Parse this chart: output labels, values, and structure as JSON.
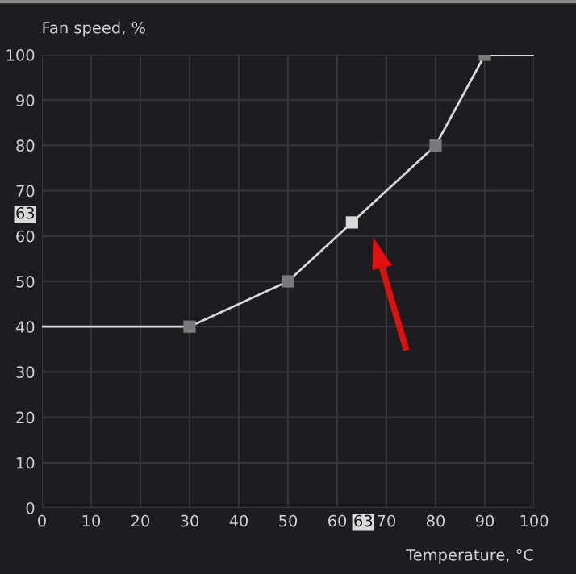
{
  "chart_data": {
    "type": "line",
    "ylabel": "Fan speed, %",
    "xlabel": "Temperature, °C",
    "xlim": [
      0,
      100
    ],
    "ylim": [
      0,
      100
    ],
    "xticks": [
      0,
      10,
      20,
      30,
      40,
      50,
      60,
      {
        "value": 63,
        "label": "63"
      },
      70,
      80,
      90,
      100
    ],
    "yticks": [
      0,
      10,
      20,
      30,
      40,
      50,
      60,
      {
        "value": 63,
        "label": "63"
      },
      70,
      80,
      90,
      100
    ],
    "grid": true,
    "series": [
      {
        "color": "#d8d8d8",
        "marker": "none",
        "x": [
          0,
          30,
          50,
          63,
          80,
          90,
          100
        ],
        "values": [
          40,
          40,
          50,
          63,
          80,
          100,
          100
        ]
      },
      {
        "type": "scatter",
        "color": "#7a7a7a",
        "colors": [
          "#7a7a7a",
          "#7a7a7a",
          "#d9d9d9",
          "#7a7a7a",
          "#7a7a7a"
        ],
        "marker": "square",
        "x": [
          30,
          50,
          63,
          80,
          90
        ],
        "values": [
          40,
          50,
          63,
          80,
          100
        ]
      }
    ]
  }
}
